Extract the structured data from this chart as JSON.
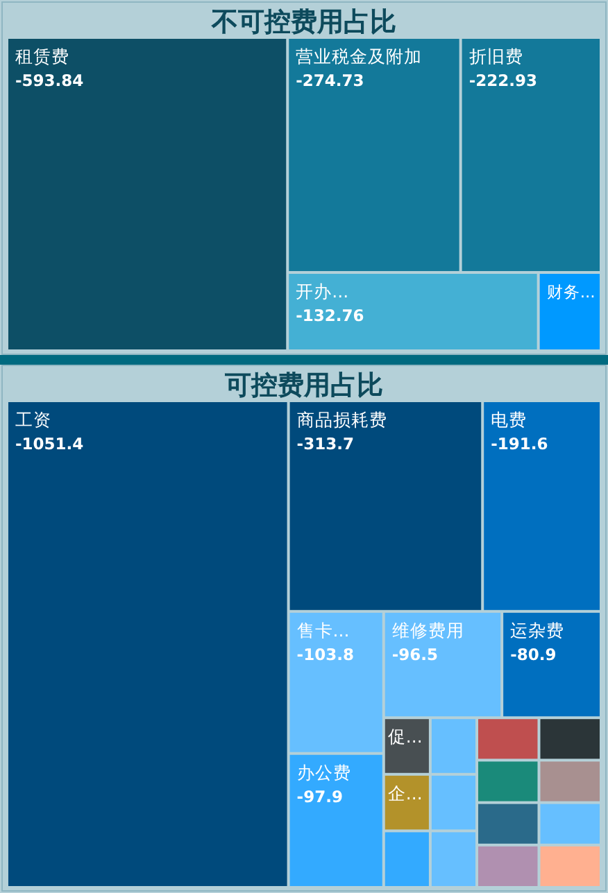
{
  "chart_data": [
    {
      "type": "other",
      "title": "不可控费用占比",
      "data_labels": true,
      "categories": [
        "租赁费",
        "营业税金及附加",
        "折旧费",
        "开办...",
        "财务..."
      ],
      "values": [
        -593.84,
        -274.73,
        -222.93,
        -132.76,
        null
      ],
      "colors": [
        "#0d4f66",
        "#13799a",
        "#13799a",
        "#44b0d4",
        "#0099ff"
      ]
    },
    {
      "type": "other",
      "title": "可控费用占比",
      "data_labels": true,
      "categories": [
        "工资",
        "商品损耗费",
        "电费",
        "售卡...",
        "办公费",
        "维修费用",
        "运杂费",
        "促...",
        "企...",
        null,
        null,
        null,
        null,
        null,
        null,
        null,
        null,
        null,
        null,
        null,
        null
      ],
      "values": [
        -1051.4,
        -313.7,
        -191.6,
        -103.8,
        -97.9,
        -96.5,
        -80.9,
        null,
        null,
        null,
        null,
        null,
        null,
        null,
        null,
        null,
        null,
        null,
        null,
        null,
        null
      ],
      "colors": [
        "#004a7c",
        "#004a7c",
        "#006fbf",
        "#66bfff",
        "#33aaff",
        "#66bfff",
        "#006fbf",
        "#484f52",
        "#b3922a",
        "#33aaff",
        "#66bfff",
        "#66bfff",
        "#66bfff",
        "#bf4f4f",
        "#2b3538",
        "#1a8a7a",
        "#a89090",
        "#2a6a8a",
        "#b090b0",
        "#66bfff",
        "#ffb090"
      ]
    }
  ]
}
